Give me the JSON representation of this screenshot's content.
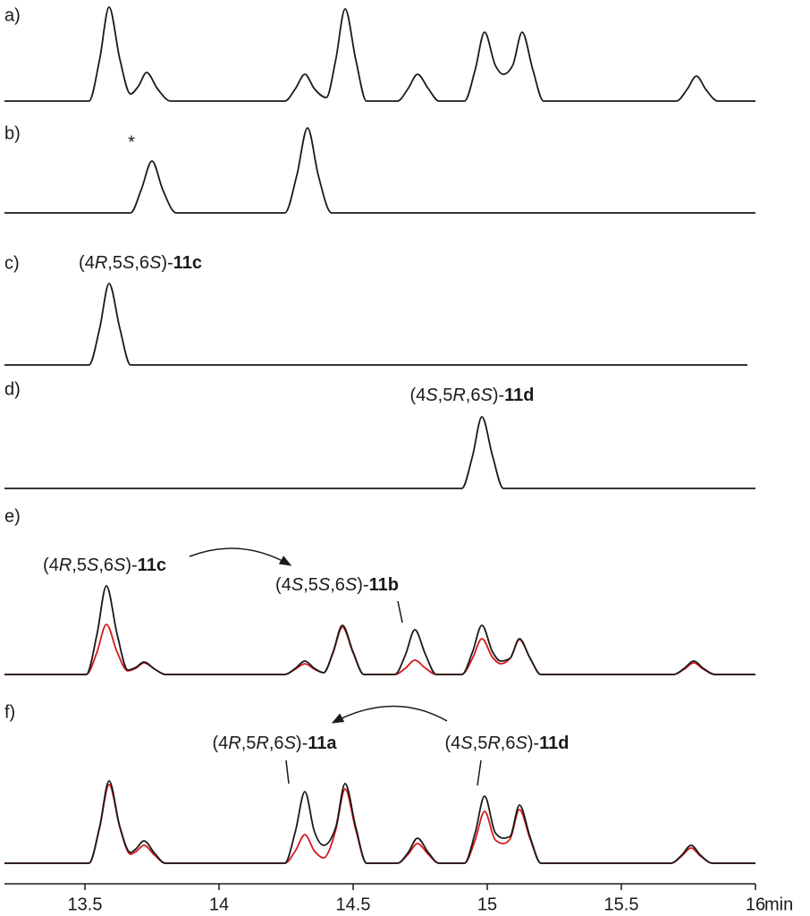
{
  "chart_data": [
    {
      "type": "line",
      "label": "a)",
      "xlim": [
        13.2,
        16.0
      ],
      "ylim": [
        0,
        120
      ],
      "x": [
        13.2,
        13.515,
        13.555,
        13.59,
        13.63,
        13.67,
        13.7,
        13.73,
        13.77,
        13.82,
        14.245,
        14.285,
        14.32,
        14.355,
        14.4,
        14.435,
        14.47,
        14.51,
        14.55,
        14.665,
        14.705,
        14.74,
        14.78,
        14.82,
        14.915,
        14.955,
        14.99,
        15.03,
        15.06,
        15.095,
        15.13,
        15.17,
        15.21,
        15.705,
        15.745,
        15.78,
        15.815,
        15.86,
        16.0
      ],
      "series": [
        {
          "color": "#1a1a1a",
          "values": [
            0,
            0,
            47,
            105,
            47,
            8,
            17,
            32,
            14,
            0,
            0,
            14,
            30,
            14,
            4,
            46,
            103,
            46,
            0,
            0,
            14,
            30,
            14,
            0,
            0,
            35,
            77,
            40,
            30,
            40,
            77,
            35,
            0,
            0,
            13,
            28,
            13,
            0,
            0
          ]
        }
      ]
    },
    {
      "type": "line",
      "label": "b)",
      "xlim": [
        13.2,
        16.0
      ],
      "ylim": [
        0,
        120
      ],
      "x": [
        13.2,
        13.67,
        13.71,
        13.75,
        13.79,
        13.84,
        14.245,
        14.29,
        14.33,
        14.37,
        14.42,
        16.0
      ],
      "series": [
        {
          "color": "#1a1a1a",
          "values": [
            0,
            0,
            26,
            58,
            26,
            0,
            0,
            42,
            95,
            42,
            0,
            0
          ]
        }
      ],
      "annotations": [
        "*"
      ]
    },
    {
      "type": "line",
      "label": "c)",
      "xlim": [
        13.2,
        16.0
      ],
      "ylim": [
        0,
        120
      ],
      "x": [
        13.2,
        13.515,
        13.555,
        13.59,
        13.63,
        13.67,
        15.97
      ],
      "series": [
        {
          "color": "#1a1a1a",
          "values": [
            0,
            0,
            41,
            91,
            41,
            0,
            0
          ]
        }
      ],
      "annotations": [
        "(4R,5S,6S)-11c"
      ]
    },
    {
      "type": "line",
      "label": "d)",
      "xlim": [
        13.2,
        16.0
      ],
      "ylim": [
        0,
        120
      ],
      "x": [
        13.2,
        14.905,
        14.945,
        14.98,
        15.02,
        15.06,
        16.0
      ],
      "series": [
        {
          "color": "#1a1a1a",
          "values": [
            0,
            0,
            36,
            80,
            36,
            0,
            0
          ]
        }
      ],
      "annotations": [
        "(4S,5R,6S)-11d"
      ]
    },
    {
      "type": "line",
      "label": "e)",
      "xlim": [
        13.2,
        16.0
      ],
      "ylim": [
        0,
        120
      ],
      "x": [
        13.2,
        13.505,
        13.545,
        13.58,
        13.62,
        13.66,
        13.69,
        13.72,
        13.76,
        13.8,
        14.245,
        14.285,
        14.32,
        14.355,
        14.39,
        14.425,
        14.46,
        14.5,
        14.54,
        14.655,
        14.695,
        14.73,
        14.77,
        14.81,
        14.905,
        14.945,
        14.98,
        15.02,
        15.05,
        15.085,
        15.12,
        15.16,
        15.2,
        15.695,
        15.735,
        15.77,
        15.805,
        15.85,
        16.0
      ],
      "series": [
        {
          "color": "#d7191c",
          "values": [
            0,
            0,
            25,
            56,
            25,
            4,
            7,
            13,
            6,
            0,
            0,
            6,
            12,
            6,
            2,
            24,
            53,
            24,
            0,
            0,
            7,
            16,
            7,
            0,
            0,
            18,
            40,
            19,
            12,
            18,
            39,
            18,
            0,
            0,
            6,
            13,
            6,
            0,
            0
          ]
        },
        {
          "color": "#1a1a1a",
          "values": [
            0,
            0,
            45,
            99,
            45,
            5,
            8,
            14,
            6,
            0,
            0,
            7,
            15,
            7,
            2,
            25,
            55,
            25,
            0,
            0,
            22,
            50,
            22,
            0,
            0,
            25,
            55,
            25,
            15,
            18,
            40,
            18,
            0,
            0,
            7,
            15,
            7,
            0,
            0
          ]
        }
      ],
      "annotations": [
        "(4R,5S,6S)-11c",
        "(4S,5S,6S)-11b"
      ]
    },
    {
      "type": "line",
      "label": "f)",
      "xlim": [
        13.2,
        16.0
      ],
      "ylim": [
        0,
        120
      ],
      "x": [
        13.2,
        13.515,
        13.555,
        13.59,
        13.63,
        13.67,
        13.69,
        13.72,
        13.76,
        13.8,
        14.245,
        14.285,
        14.32,
        14.355,
        14.39,
        14.435,
        14.47,
        14.51,
        14.55,
        14.665,
        14.705,
        14.74,
        14.78,
        14.82,
        14.915,
        14.955,
        14.99,
        15.03,
        15.06,
        15.085,
        15.12,
        15.16,
        15.2,
        15.685,
        15.725,
        15.76,
        15.795,
        15.84,
        16.0
      ],
      "series": [
        {
          "color": "#d7191c",
          "values": [
            0,
            0,
            40,
            88,
            40,
            10,
            13,
            20,
            9,
            0,
            0,
            14,
            32,
            14,
            6,
            37,
            83,
            37,
            0,
            0,
            10,
            22,
            10,
            0,
            0,
            26,
            58,
            26,
            22,
            27,
            60,
            27,
            0,
            0,
            8,
            17,
            8,
            0,
            0
          ]
        },
        {
          "color": "#1a1a1a",
          "values": [
            0,
            0,
            41,
            92,
            41,
            12,
            16,
            25,
            11,
            0,
            0,
            36,
            80,
            36,
            20,
            40,
            89,
            40,
            0,
            0,
            12,
            28,
            12,
            0,
            0,
            34,
            75,
            34,
            28,
            30,
            65,
            29,
            0,
            0,
            9,
            20,
            9,
            0,
            0
          ]
        }
      ],
      "annotations": [
        "(4R,5R,6S)-11a",
        "(4S,5R,6S)-11d"
      ],
      "xticks": [
        13.5,
        14,
        14.5,
        15,
        15.5,
        16
      ],
      "x_label": "min"
    }
  ]
}
